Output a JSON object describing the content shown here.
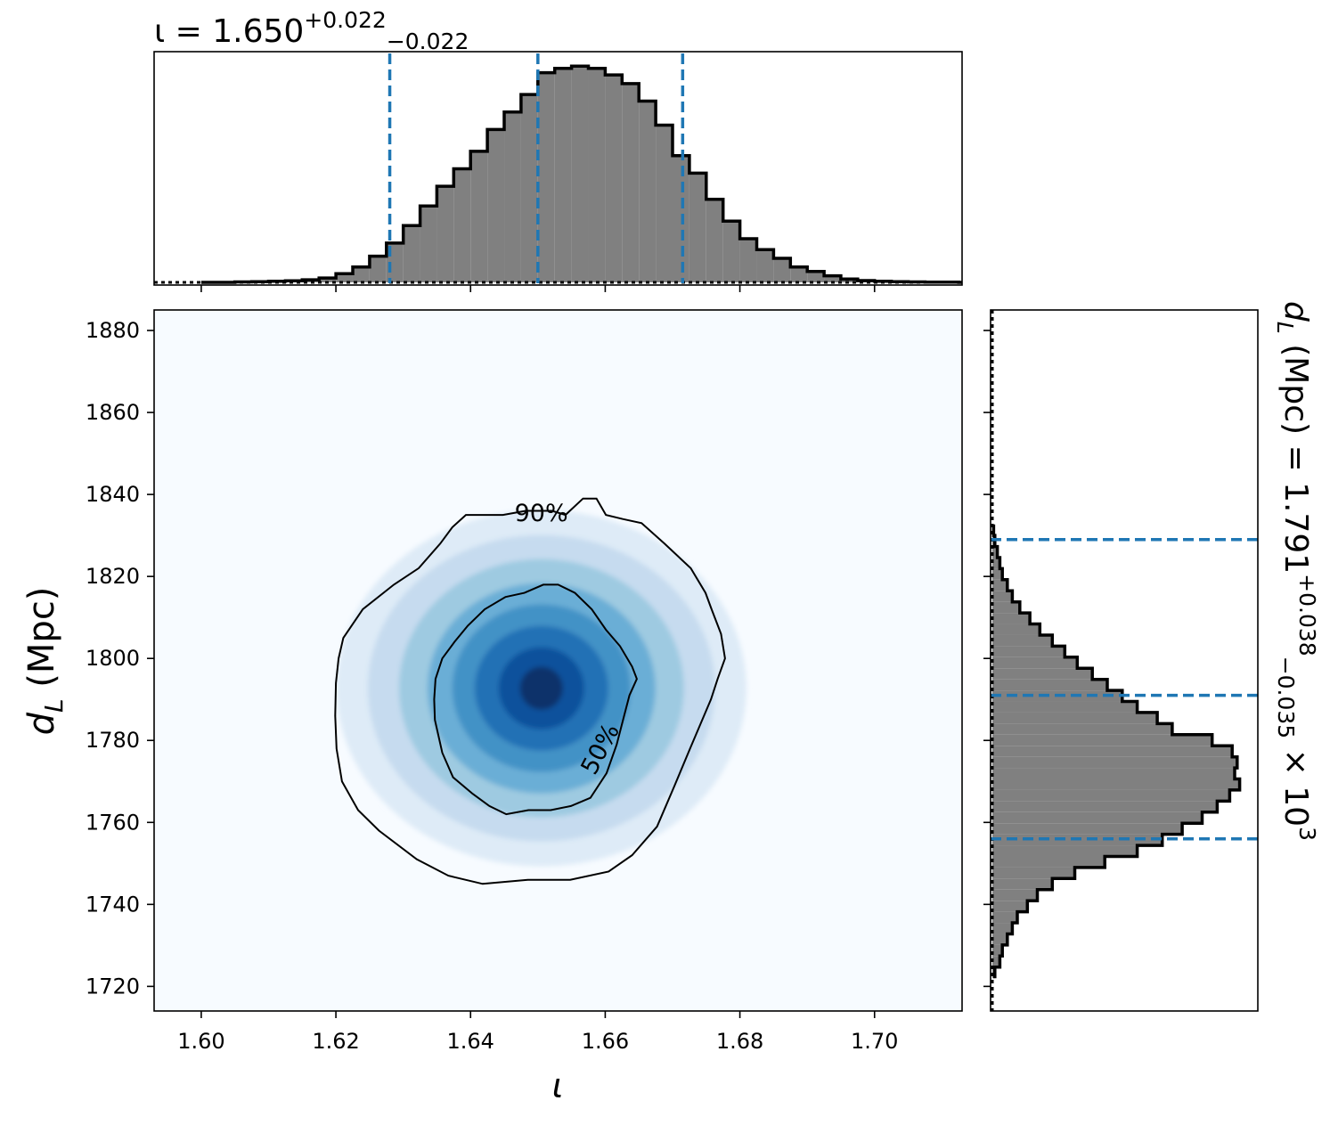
{
  "chart_data": [
    {
      "type": "histogram",
      "panel": "top-marginal",
      "parameter": "ι",
      "title": {
        "prefix": "ι = 1.650",
        "sup": "+0.022",
        "sub": "−0.022"
      },
      "x_range": [
        1.593,
        1.713
      ],
      "bin_edges_start": 1.6,
      "bin_width": 0.0025,
      "density": [
        0.0,
        0.0,
        0.002,
        0.003,
        0.005,
        0.007,
        0.012,
        0.02,
        0.04,
        0.07,
        0.12,
        0.18,
        0.26,
        0.35,
        0.44,
        0.52,
        0.6,
        0.7,
        0.78,
        0.86,
        0.96,
        0.98,
        0.99,
        0.98,
        0.95,
        0.91,
        0.83,
        0.72,
        0.58,
        0.5,
        0.38,
        0.28,
        0.2,
        0.15,
        0.11,
        0.07,
        0.05,
        0.03,
        0.015,
        0.008,
        0.005,
        0.003,
        0.002,
        0.001,
        0.001,
        0.0,
        0.0
      ],
      "ylim": [
        0,
        1.04
      ],
      "quantile_lines": [
        1.628,
        1.65,
        1.6715
      ]
    },
    {
      "type": "heatmap",
      "panel": "joint",
      "xlabel": "ι",
      "ylabel": "d_L (Mpc)",
      "xlim": [
        1.593,
        1.713
      ],
      "ylim": [
        1714,
        1885
      ],
      "xticks": [
        1.6,
        1.62,
        1.64,
        1.66,
        1.68,
        1.7
      ],
      "xtick_labels": [
        "1.60",
        "1.62",
        "1.64",
        "1.66",
        "1.68",
        "1.70"
      ],
      "yticks": [
        1720,
        1740,
        1760,
        1780,
        1800,
        1820,
        1840,
        1860,
        1880
      ],
      "ytick_labels": [
        "1720",
        "1740",
        "1760",
        "1780",
        "1800",
        "1820",
        "1840",
        "1860",
        "1880"
      ],
      "peak": {
        "x": 1.65,
        "y": 1791
      },
      "colormap": "Blues",
      "contours": [
        {
          "label": "90%",
          "points": [
            [
              1.6393,
              1835
            ],
            [
              1.6448,
              1835
            ],
            [
              1.6482,
              1836
            ],
            [
              1.6521,
              1836
            ],
            [
              1.6541,
              1835
            ],
            [
              1.6567,
              1839
            ],
            [
              1.6587,
              1839
            ],
            [
              1.6601,
              1835
            ],
            [
              1.6626,
              1834
            ],
            [
              1.6654,
              1833
            ],
            [
              1.6688,
              1828
            ],
            [
              1.6727,
              1822
            ],
            [
              1.6749,
              1816
            ],
            [
              1.6758,
              1812
            ],
            [
              1.6772,
              1806
            ],
            [
              1.6778,
              1800
            ],
            [
              1.6767,
              1795
            ],
            [
              1.6757,
              1790
            ],
            [
              1.6726,
              1778
            ],
            [
              1.6703,
              1769
            ],
            [
              1.6677,
              1759
            ],
            [
              1.664,
              1752
            ],
            [
              1.6605,
              1748
            ],
            [
              1.6548,
              1746
            ],
            [
              1.6485,
              1746
            ],
            [
              1.6418,
              1745
            ],
            [
              1.6367,
              1747
            ],
            [
              1.632,
              1751
            ],
            [
              1.6264,
              1758
            ],
            [
              1.6233,
              1763
            ],
            [
              1.6209,
              1770
            ],
            [
              1.6201,
              1778
            ],
            [
              1.6199,
              1786
            ],
            [
              1.62,
              1794
            ],
            [
              1.6204,
              1800
            ],
            [
              1.6211,
              1805
            ],
            [
              1.624,
              1812
            ],
            [
              1.6286,
              1818
            ],
            [
              1.6323,
              1822
            ],
            [
              1.6355,
              1828
            ],
            [
              1.6373,
              1832
            ]
          ]
        },
        {
          "label": "50%",
          "points": [
            [
              1.6452,
              1815
            ],
            [
              1.648,
              1816
            ],
            [
              1.6508,
              1818
            ],
            [
              1.653,
              1818
            ],
            [
              1.6555,
              1816
            ],
            [
              1.658,
              1812
            ],
            [
              1.6601,
              1807
            ],
            [
              1.6622,
              1803
            ],
            [
              1.664,
              1798
            ],
            [
              1.6647,
              1795
            ],
            [
              1.6636,
              1791
            ],
            [
              1.6628,
              1786
            ],
            [
              1.6617,
              1779
            ],
            [
              1.6602,
              1772
            ],
            [
              1.6578,
              1766
            ],
            [
              1.6549,
              1764
            ],
            [
              1.6519,
              1763
            ],
            [
              1.6486,
              1763
            ],
            [
              1.6453,
              1762
            ],
            [
              1.6428,
              1764
            ],
            [
              1.6403,
              1767
            ],
            [
              1.6374,
              1771
            ],
            [
              1.6358,
              1777
            ],
            [
              1.6347,
              1785
            ],
            [
              1.6346,
              1790
            ],
            [
              1.6348,
              1795
            ],
            [
              1.6358,
              1800
            ],
            [
              1.6376,
              1804
            ],
            [
              1.6396,
              1808
            ],
            [
              1.6421,
              1812
            ]
          ]
        }
      ]
    },
    {
      "type": "histogram",
      "panel": "right-marginal",
      "parameter": "d_L (Mpc)",
      "label": {
        "prefix": "d",
        "sub_letter": "L",
        "mid": " (Mpc) = 1.791",
        "sup": "+0.038",
        "sub": "−0.035",
        "suffix": " × 10",
        "exp": "3"
      },
      "y_range": [
        1714,
        1885
      ],
      "bin_edges_start": 1722,
      "bin_width": 2.7,
      "density": [
        0.01,
        0.03,
        0.04,
        0.06,
        0.08,
        0.1,
        0.14,
        0.18,
        0.24,
        0.33,
        0.45,
        0.58,
        0.68,
        0.76,
        0.84,
        0.9,
        0.95,
        0.99,
        0.97,
        0.98,
        0.96,
        0.88,
        0.72,
        0.66,
        0.58,
        0.52,
        0.46,
        0.4,
        0.34,
        0.29,
        0.24,
        0.19,
        0.15,
        0.11,
        0.08,
        0.06,
        0.04,
        0.03,
        0.02,
        0.01,
        0.005
      ],
      "xlim": [
        0,
        1.02
      ],
      "quantile_lines": [
        1756,
        1791,
        1829
      ]
    }
  ]
}
